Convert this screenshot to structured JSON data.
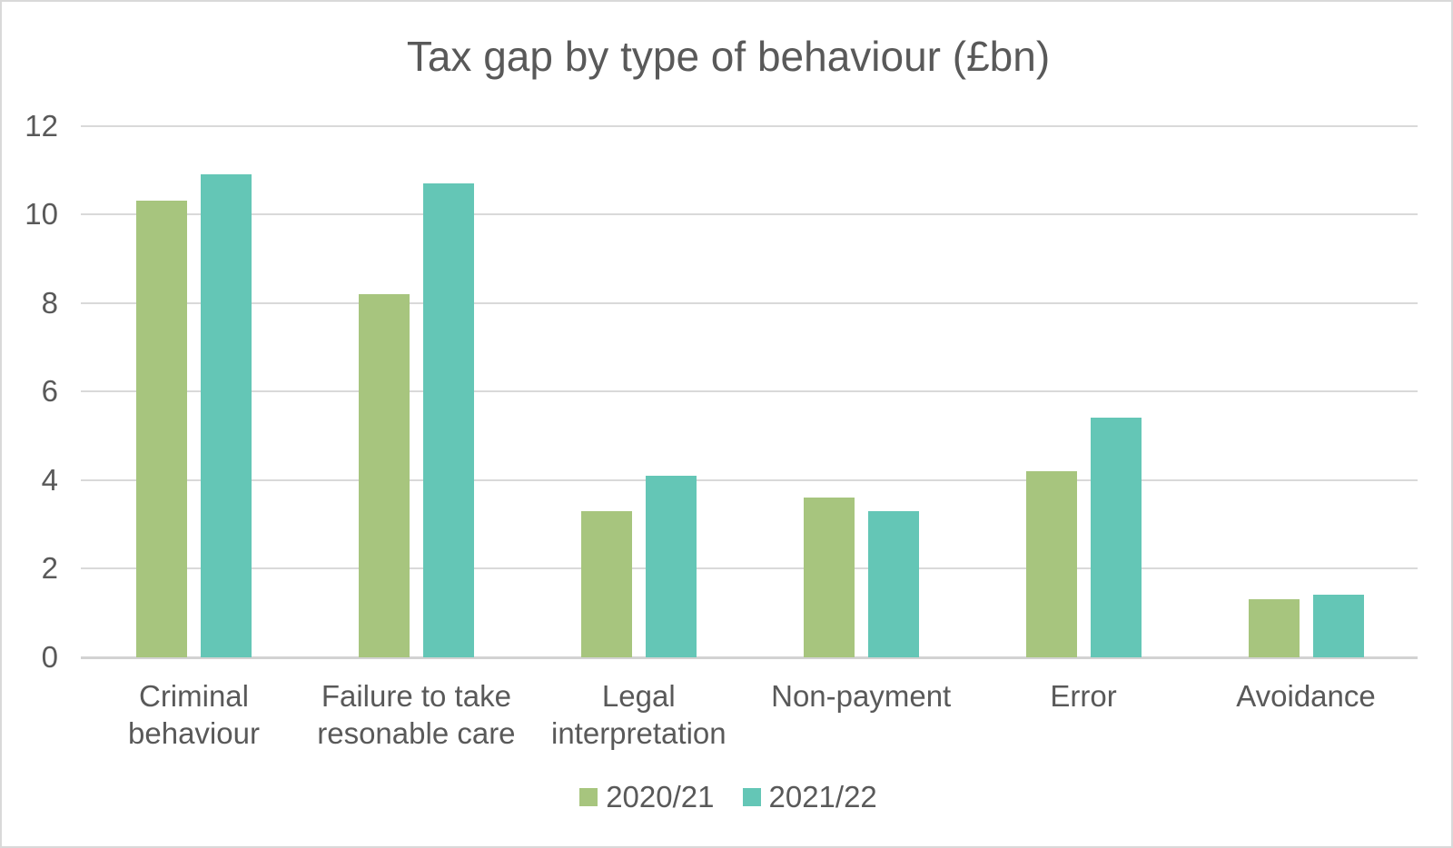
{
  "chart_data": {
    "type": "bar",
    "title": "Tax gap by type of behaviour (£bn)",
    "xlabel": "",
    "ylabel": "",
    "categories": [
      "Criminal behaviour",
      "Failure to take resonable care",
      "Legal interpretation",
      "Non-payment",
      "Error",
      "Avoidance"
    ],
    "category_label_lines": [
      [
        "Criminal",
        "behaviour"
      ],
      [
        "Failure to take",
        "resonable care"
      ],
      [
        "Legal",
        "interpretation"
      ],
      [
        "Non-payment"
      ],
      [
        "Error"
      ],
      [
        "Avoidance"
      ]
    ],
    "series": [
      {
        "name": "2020/21",
        "color": "#A7C57E",
        "values": [
          10.3,
          8.2,
          3.3,
          3.6,
          4.2,
          1.3
        ]
      },
      {
        "name": "2021/22",
        "color": "#64C6B6",
        "values": [
          10.9,
          10.7,
          4.1,
          3.3,
          5.4,
          1.4
        ]
      }
    ],
    "ylim": [
      0,
      12
    ],
    "yticks": [
      0,
      2,
      4,
      6,
      8,
      10,
      12
    ],
    "grid": "horizontal",
    "legend_position": "bottom"
  },
  "colors": {
    "text": "#595959",
    "gridline": "#D9D9D9",
    "axis_line": "#D2D2D2",
    "background": "#FFFFFF",
    "border": "#D9D9D9"
  }
}
